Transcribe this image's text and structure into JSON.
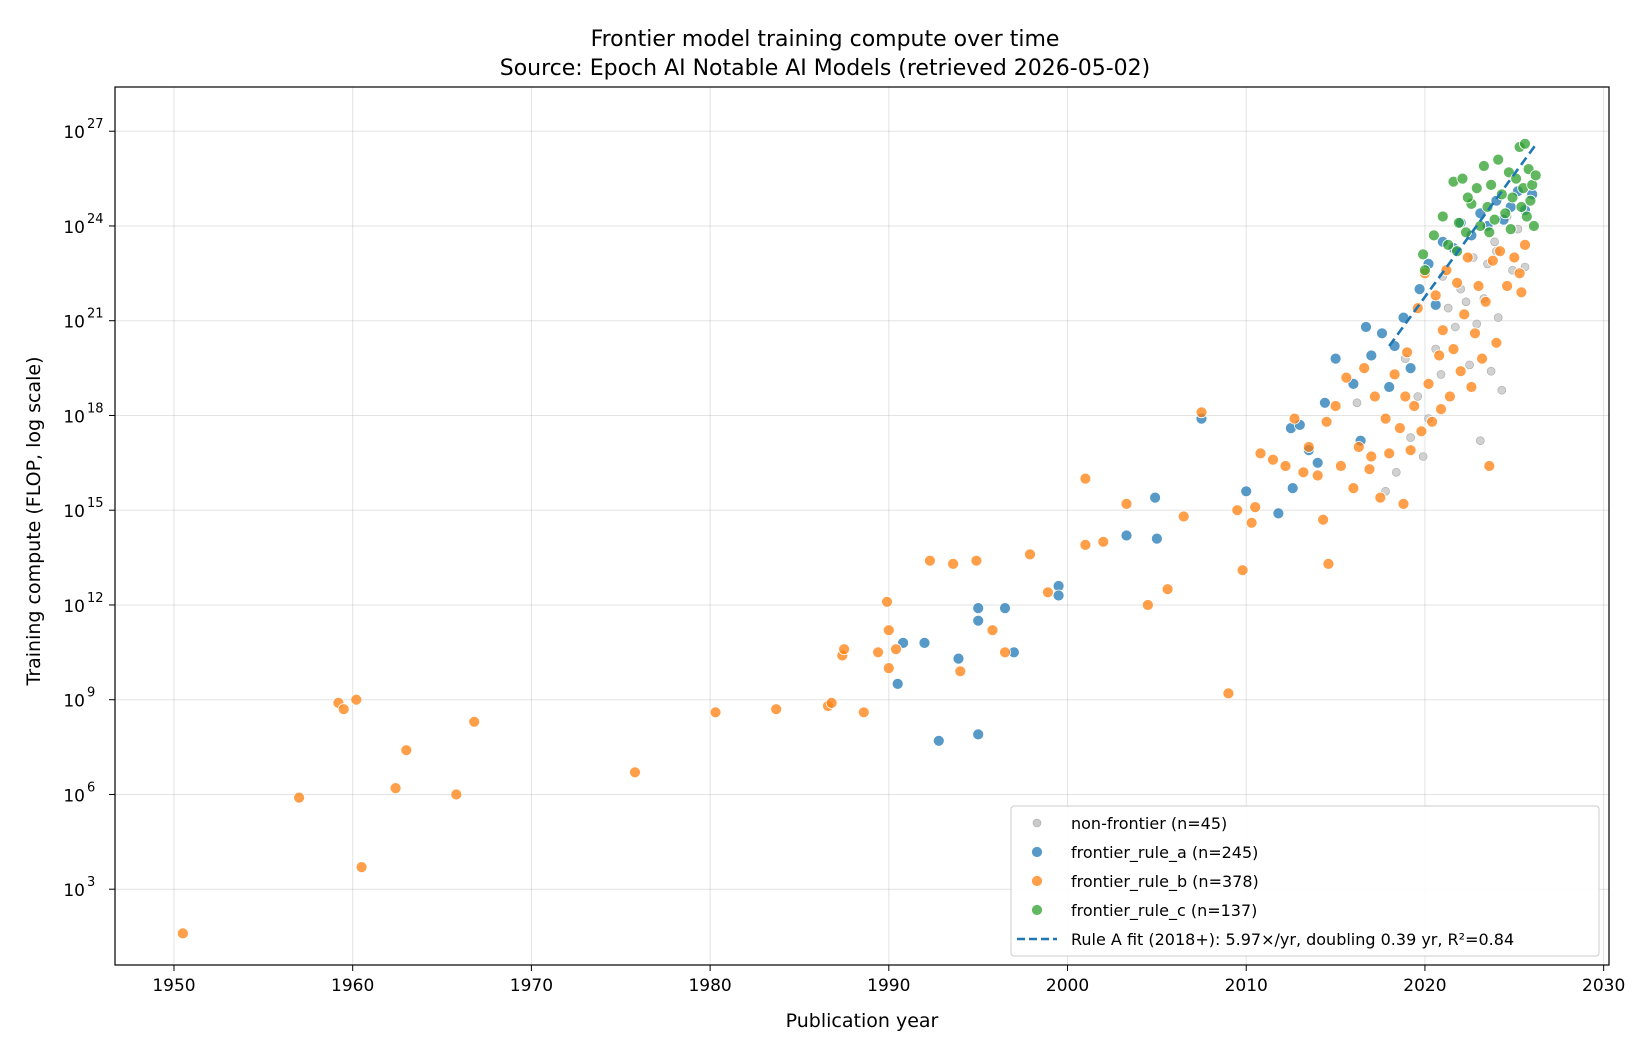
{
  "chart_data": {
    "type": "scatter",
    "title": "Frontier model training compute over time",
    "subtitle": "Source: Epoch AI Notable AI Models (retrieved 2026-05-02)",
    "xlabel": "Publication year",
    "ylabel": "Training compute (FLOP, log scale)",
    "y_scale": "log",
    "xlim": [
      1946.7,
      2030.3
    ],
    "ylim_log10": [
      0.6,
      28.4
    ],
    "x_ticks": [
      "1950",
      "1960",
      "1970",
      "1980",
      "1990",
      "2000",
      "2010",
      "2020",
      "2030"
    ],
    "y_ticks": [
      {
        "base": "10",
        "exp": "3"
      },
      {
        "base": "10",
        "exp": "6"
      },
      {
        "base": "10",
        "exp": "9"
      },
      {
        "base": "10",
        "exp": "12"
      },
      {
        "base": "10",
        "exp": "15"
      },
      {
        "base": "10",
        "exp": "18"
      },
      {
        "base": "10",
        "exp": "21"
      },
      {
        "base": "10",
        "exp": "24"
      },
      {
        "base": "10",
        "exp": "27"
      }
    ],
    "grid": true,
    "legend_position": "lower-right",
    "series": [
      {
        "name": "non-frontier (n=45)",
        "color": "#c9c9c9",
        "points": [
          [
            2017.8,
            15.6
          ],
          [
            2018.4,
            16.2
          ],
          [
            2019.2,
            17.3
          ],
          [
            2019.6,
            18.6
          ],
          [
            2019.9,
            16.7
          ],
          [
            2020.2,
            17.9
          ],
          [
            2020.6,
            20.1
          ],
          [
            2020.9,
            19.3
          ],
          [
            2021.3,
            21.4
          ],
          [
            2021.7,
            20.8
          ],
          [
            2022.0,
            22.0
          ],
          [
            2022.3,
            21.6
          ],
          [
            2022.5,
            19.6
          ],
          [
            2022.7,
            23.0
          ],
          [
            2022.9,
            20.9
          ],
          [
            2023.1,
            17.2
          ],
          [
            2023.3,
            21.7
          ],
          [
            2023.5,
            22.8
          ],
          [
            2023.7,
            19.4
          ],
          [
            2023.9,
            23.5
          ],
          [
            2024.1,
            21.1
          ],
          [
            2024.3,
            18.8
          ],
          [
            2024.6,
            24.3
          ],
          [
            2024.9,
            22.6
          ],
          [
            2025.2,
            23.9
          ],
          [
            2025.6,
            22.7
          ],
          [
            2016.2,
            18.4
          ],
          [
            2018.9,
            19.8
          ],
          [
            2021.0,
            22.4
          ],
          [
            2024.0,
            23.2
          ]
        ]
      },
      {
        "name": "frontier_rule_a (n=245)",
        "color": "#1f77b4",
        "points": [
          [
            1990.5,
            9.5
          ],
          [
            1990.8,
            10.8
          ],
          [
            1992.0,
            10.8
          ],
          [
            1992.8,
            7.7
          ],
          [
            1993.9,
            10.3
          ],
          [
            1995.0,
            11.9
          ],
          [
            1995.0,
            11.5
          ],
          [
            1995.0,
            7.9
          ],
          [
            1996.5,
            11.9
          ],
          [
            1997.0,
            10.5
          ],
          [
            1999.5,
            12.6
          ],
          [
            1999.5,
            12.3
          ],
          [
            2003.3,
            14.2
          ],
          [
            2004.9,
            15.4
          ],
          [
            2005.0,
            14.1
          ],
          [
            2007.5,
            17.9
          ],
          [
            2010.0,
            15.6
          ],
          [
            2011.8,
            14.9
          ],
          [
            2012.5,
            17.6
          ],
          [
            2012.6,
            15.7
          ],
          [
            2013.0,
            17.7
          ],
          [
            2013.5,
            16.9
          ],
          [
            2014.0,
            16.5
          ],
          [
            2014.4,
            18.4
          ],
          [
            2015.0,
            19.8
          ],
          [
            2016.0,
            19.0
          ],
          [
            2016.7,
            20.8
          ],
          [
            2017.0,
            19.9
          ],
          [
            2017.6,
            20.6
          ],
          [
            2018.3,
            20.2
          ],
          [
            2018.8,
            21.1
          ],
          [
            2019.2,
            19.5
          ],
          [
            2019.7,
            22.0
          ],
          [
            2020.2,
            22.8
          ],
          [
            2021.0,
            23.5
          ],
          [
            2021.6,
            23.3
          ],
          [
            2022.0,
            24.1
          ],
          [
            2022.6,
            23.7
          ],
          [
            2023.1,
            24.4
          ],
          [
            2023.5,
            24.0
          ],
          [
            2024.0,
            24.8
          ],
          [
            2024.4,
            24.2
          ],
          [
            2024.8,
            24.6
          ],
          [
            2025.2,
            25.1
          ],
          [
            2025.6,
            24.5
          ],
          [
            2026.0,
            25.0
          ],
          [
            2020.6,
            21.5
          ],
          [
            2018.0,
            18.9
          ],
          [
            2016.4,
            17.2
          ]
        ]
      },
      {
        "name": "frontier_rule_b (n=378)",
        "color": "#ff7f0e",
        "points": [
          [
            1950.5,
            1.6
          ],
          [
            1957.0,
            5.9
          ],
          [
            1959.2,
            8.9
          ],
          [
            1959.5,
            8.7
          ],
          [
            1960.2,
            9.0
          ],
          [
            1960.5,
            3.7
          ],
          [
            1962.4,
            6.2
          ],
          [
            1963.0,
            7.4
          ],
          [
            1965.8,
            6.0
          ],
          [
            1966.8,
            8.3
          ],
          [
            1975.8,
            6.7
          ],
          [
            1980.3,
            8.6
          ],
          [
            1983.7,
            8.7
          ],
          [
            1986.6,
            8.8
          ],
          [
            1986.8,
            8.9
          ],
          [
            1987.4,
            10.4
          ],
          [
            1987.5,
            10.6
          ],
          [
            1988.6,
            8.6
          ],
          [
            1989.4,
            10.5
          ],
          [
            1989.9,
            12.1
          ],
          [
            1990.0,
            11.2
          ],
          [
            1990.0,
            10.0
          ],
          [
            1990.4,
            10.6
          ],
          [
            1992.3,
            13.4
          ],
          [
            1993.6,
            13.3
          ],
          [
            1994.0,
            9.9
          ],
          [
            1994.9,
            13.4
          ],
          [
            1995.8,
            11.2
          ],
          [
            1996.5,
            10.5
          ],
          [
            1997.9,
            13.6
          ],
          [
            1998.9,
            12.4
          ],
          [
            2001.0,
            13.9
          ],
          [
            2001.0,
            16.0
          ],
          [
            2002.0,
            14.0
          ],
          [
            2003.3,
            15.2
          ],
          [
            2004.5,
            12.0
          ],
          [
            2005.6,
            12.5
          ],
          [
            2006.5,
            14.8
          ],
          [
            2007.5,
            18.1
          ],
          [
            2009.0,
            9.2
          ],
          [
            2009.5,
            15.0
          ],
          [
            2009.8,
            13.1
          ],
          [
            2010.3,
            14.6
          ],
          [
            2010.5,
            15.1
          ],
          [
            2010.8,
            16.8
          ],
          [
            2011.5,
            16.6
          ],
          [
            2012.2,
            16.4
          ],
          [
            2012.7,
            17.9
          ],
          [
            2013.2,
            16.2
          ],
          [
            2013.5,
            17.0
          ],
          [
            2014.0,
            16.1
          ],
          [
            2014.3,
            14.7
          ],
          [
            2014.5,
            17.8
          ],
          [
            2014.6,
            13.3
          ],
          [
            2015.0,
            18.3
          ],
          [
            2015.3,
            16.4
          ],
          [
            2015.6,
            19.2
          ],
          [
            2016.0,
            15.7
          ],
          [
            2016.3,
            17.0
          ],
          [
            2016.6,
            19.5
          ],
          [
            2016.9,
            16.3
          ],
          [
            2017.2,
            18.6
          ],
          [
            2017.5,
            15.4
          ],
          [
            2017.8,
            17.9
          ],
          [
            2018.0,
            16.8
          ],
          [
            2018.3,
            19.3
          ],
          [
            2018.6,
            17.6
          ],
          [
            2018.8,
            15.2
          ],
          [
            2019.0,
            20.0
          ],
          [
            2019.2,
            16.9
          ],
          [
            2019.4,
            18.3
          ],
          [
            2019.6,
            21.4
          ],
          [
            2019.8,
            17.5
          ],
          [
            2020.0,
            22.5
          ],
          [
            2020.2,
            19.0
          ],
          [
            2020.4,
            17.8
          ],
          [
            2020.6,
            21.8
          ],
          [
            2020.8,
            19.9
          ],
          [
            2021.0,
            20.7
          ],
          [
            2021.2,
            22.6
          ],
          [
            2021.4,
            18.6
          ],
          [
            2021.6,
            20.1
          ],
          [
            2021.8,
            22.2
          ],
          [
            2022.0,
            19.4
          ],
          [
            2022.2,
            21.2
          ],
          [
            2022.4,
            23.0
          ],
          [
            2022.6,
            18.9
          ],
          [
            2022.8,
            20.6
          ],
          [
            2023.0,
            22.1
          ],
          [
            2023.2,
            19.8
          ],
          [
            2023.4,
            21.6
          ],
          [
            2023.6,
            16.4
          ],
          [
            2023.8,
            22.9
          ],
          [
            2024.0,
            20.3
          ],
          [
            2024.2,
            23.2
          ],
          [
            2024.6,
            22.1
          ],
          [
            2025.0,
            23.0
          ],
          [
            2025.4,
            21.9
          ],
          [
            2025.6,
            23.4
          ],
          [
            2025.3,
            22.5
          ],
          [
            2017.0,
            16.7
          ],
          [
            2018.9,
            18.6
          ],
          [
            2020.9,
            18.2
          ]
        ]
      },
      {
        "name": "frontier_rule_c (n=137)",
        "color": "#2ca02c",
        "points": [
          [
            2019.9,
            23.1
          ],
          [
            2020.0,
            22.6
          ],
          [
            2020.5,
            23.7
          ],
          [
            2021.0,
            24.3
          ],
          [
            2021.3,
            23.4
          ],
          [
            2021.6,
            25.4
          ],
          [
            2021.9,
            24.1
          ],
          [
            2022.1,
            25.5
          ],
          [
            2022.3,
            23.8
          ],
          [
            2022.6,
            24.7
          ],
          [
            2022.9,
            25.2
          ],
          [
            2023.1,
            24.0
          ],
          [
            2023.3,
            25.9
          ],
          [
            2023.5,
            24.6
          ],
          [
            2023.7,
            25.3
          ],
          [
            2023.9,
            24.2
          ],
          [
            2024.1,
            26.1
          ],
          [
            2024.3,
            25.0
          ],
          [
            2024.5,
            24.4
          ],
          [
            2024.7,
            25.7
          ],
          [
            2024.9,
            24.9
          ],
          [
            2025.1,
            25.5
          ],
          [
            2025.3,
            26.5
          ],
          [
            2025.4,
            24.6
          ],
          [
            2025.5,
            25.2
          ],
          [
            2025.6,
            26.6
          ],
          [
            2025.7,
            24.3
          ],
          [
            2025.8,
            25.8
          ],
          [
            2025.9,
            24.8
          ],
          [
            2026.0,
            25.3
          ],
          [
            2026.1,
            24.0
          ],
          [
            2026.2,
            25.6
          ],
          [
            2023.6,
            23.8
          ],
          [
            2024.8,
            23.9
          ],
          [
            2022.4,
            24.9
          ],
          [
            2021.8,
            23.2
          ]
        ]
      }
    ],
    "fit_line": {
      "name": "Rule A fit (2018+): 5.97×/yr, doubling 0.39 yr, R²=0.84",
      "color": "#1f77b4",
      "x": [
        2018.0,
        2026.3
      ],
      "y_log10": [
        20.2,
        26.65
      ]
    }
  }
}
